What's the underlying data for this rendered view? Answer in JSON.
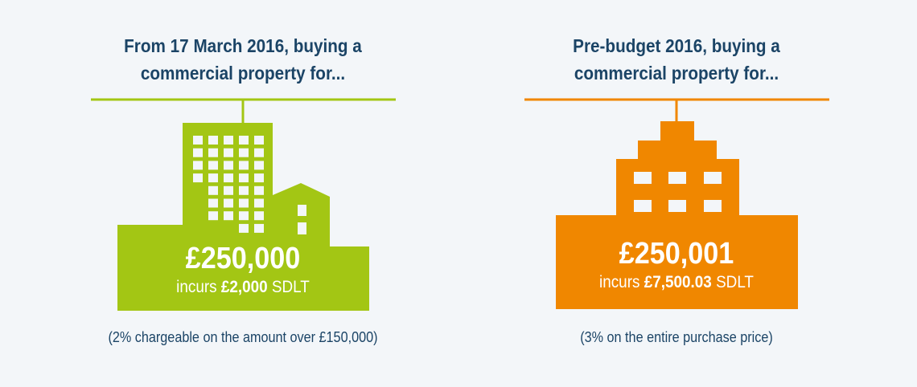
{
  "colors": {
    "green": "#a3c614",
    "orange": "#f08700",
    "title": "#1b4466",
    "background": "#f3f6f9"
  },
  "panels": [
    {
      "title_line1": "From 17 March 2016, buying a",
      "title_line2": "commercial property for...",
      "price": "£250,000",
      "incurs_prefix": "incurs",
      "tax_amount": "£2,000",
      "tax_suffix": "SDLT",
      "note": "(2% chargeable on the amount over £150,000)",
      "icon": "office-tower-building-icon"
    },
    {
      "title_line1": "Pre-budget 2016, buying a",
      "title_line2": "commercial property for...",
      "price": "£250,001",
      "incurs_prefix": "incurs",
      "tax_amount": "£7,500.03",
      "tax_suffix": "SDLT",
      "note": "(3% on the entire purchase price)",
      "icon": "stepped-building-icon"
    }
  ]
}
